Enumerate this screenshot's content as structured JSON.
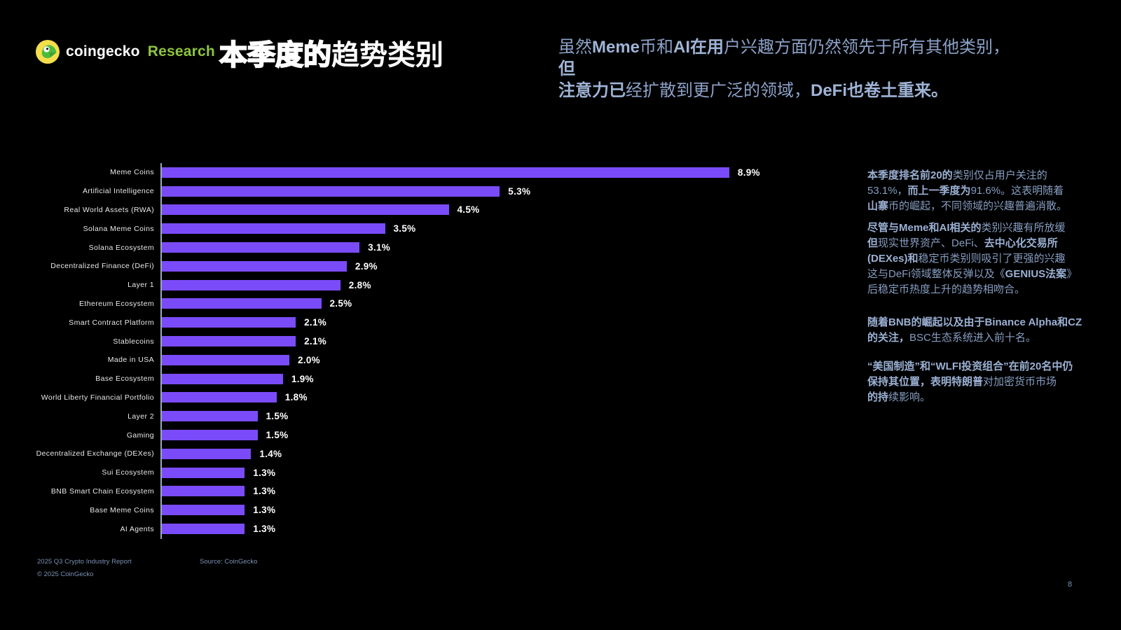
{
  "slide": {
    "logo": {
      "brand": "coingecko",
      "suffix": "Research"
    },
    "title": {
      "outline_part": "本季度的",
      "solid_part": "趋势类别"
    },
    "heading_lines": [
      [
        {
          "t": "虽然",
          "b": false
        },
        {
          "t": "Meme",
          "b": true
        },
        {
          "t": "币和",
          "b": false
        },
        {
          "t": "AI在用",
          "b": true
        },
        {
          "t": "户兴趣方面仍然领先于所有其他类别，",
          "b": false
        }
      ],
      [
        {
          "t": "但",
          "b": true
        }
      ],
      [
        {
          "t": "注意力已",
          "b": true
        },
        {
          "t": "经扩散到更广泛的领域，",
          "b": false
        },
        {
          "t": "DeFi",
          "b": true
        },
        {
          "t": "也卷土重来。",
          "b": true
        }
      ]
    ],
    "commentary": [
      {
        "lines": [
          [
            {
              "t": "本季度排名前20的",
              "b": true
            },
            {
              "t": "类别仅占用户关注的",
              "b": false
            }
          ],
          [
            {
              "t": "53.1%，",
              "b": false
            },
            {
              "t": "而上一季度为",
              "b": true
            },
            {
              "t": "91.6%。这表明随着",
              "b": false
            }
          ],
          [
            {
              "t": "山寨",
              "b": true
            },
            {
              "t": "币的崛起，不同领域的兴趣普遍消散。",
              "b": false
            }
          ]
        ]
      },
      {
        "lines": [
          [
            {
              "t": "尽管与Meme和AI相关的",
              "b": true
            },
            {
              "t": "类别兴趣有所放缓",
              "b": false
            }
          ],
          [
            {
              "t": "但",
              "b": true
            },
            {
              "t": "现实世界资产、DeFi、",
              "b": false
            },
            {
              "t": "去中心化交易所",
              "b": true
            }
          ],
          [
            {
              "t": "(DEXes)和",
              "b": true
            },
            {
              "t": "稳定币类别则吸引了更强的兴趣",
              "b": false
            }
          ],
          [
            {
              "t": "这与DeFi领域整体反弹以及《",
              "b": false
            },
            {
              "t": "GENIUS法案",
              "b": true
            },
            {
              "t": "》",
              "b": false
            }
          ],
          [
            {
              "t": "后稳定币热度上升的趋势相吻合。",
              "b": false
            }
          ]
        ]
      },
      {
        "lines": [
          [
            {
              "t": "随着BNB的崛起以及由于Binance Alpha和CZ",
              "b": true
            }
          ],
          [
            {
              "t": "的关注，",
              "b": true
            },
            {
              "t": "BSC生态系统进入前十名。",
              "b": false
            }
          ]
        ]
      },
      {
        "lines": [
          [
            {
              "t": "“美国制造”和“WLFI投资组合”在前20名中仍",
              "b": true
            }
          ],
          [
            {
              "t": "保持其位置，表明特朗普",
              "b": true
            },
            {
              "t": "对加密货币市场",
              "b": false
            }
          ],
          [
            {
              "t": "的持",
              "b": true
            },
            {
              "t": "续影响。",
              "b": false
            }
          ]
        ]
      }
    ],
    "footer": {
      "report": "2025 Q3 Crypto Industry Report",
      "source": "Source: CoinGecko",
      "copyright": "© 2025 CoinGecko",
      "page": "8"
    }
  },
  "chart_data": {
    "type": "bar",
    "orientation": "horizontal",
    "title": "本季度的趋势类别",
    "unit": "%",
    "xlim": [
      0,
      9.6
    ],
    "grid": false,
    "legend": "none",
    "bar_color": "#7A4BF8",
    "categories": [
      "Meme Coins",
      "Artificial Intelligence",
      "Real World Assets (RWA)",
      "Solana Meme Coins",
      "Solana Ecosystem",
      "Decentralized Finance (DeFi)",
      "Layer 1",
      "Ethereum Ecosystem",
      "Smart Contract Platform",
      "Stablecoins",
      "Made in USA",
      "Base Ecosystem",
      "World Liberty Financial Portfolio",
      "Layer 2",
      "Gaming",
      "Decentralized Exchange (DEXes)",
      "Sui Ecosystem",
      "BNB Smart Chain Ecosystem",
      "Base Meme Coins",
      "AI Agents"
    ],
    "values": [
      8.9,
      5.3,
      4.5,
      3.5,
      3.1,
      2.9,
      2.8,
      2.5,
      2.1,
      2.1,
      2.0,
      1.9,
      1.8,
      1.5,
      1.5,
      1.4,
      1.3,
      1.3,
      1.3,
      1.3
    ],
    "value_labels": [
      "8.9%",
      "5.3%",
      "4.5%",
      "3.5%",
      "3.1%",
      "2.9%",
      "2.8%",
      "2.5%",
      "2.1%",
      "2.1%",
      "2.0%",
      "1.9%",
      "1.8%",
      "1.5%",
      "1.5%",
      "1.4%",
      "1.3%",
      "1.3%",
      "1.3%",
      "1.3%"
    ]
  },
  "colors": {
    "background": "#000000",
    "bar": "#7A4BF8",
    "heading_text": "#8CA2C8",
    "body_text": "#879EC2",
    "footer_text": "#7C92B4",
    "axis_line": "#9AA8BB",
    "brand_green": "#8DC63F",
    "gecko_yellow": "#F5DE4B",
    "gecko_green": "#4CBB3C"
  }
}
